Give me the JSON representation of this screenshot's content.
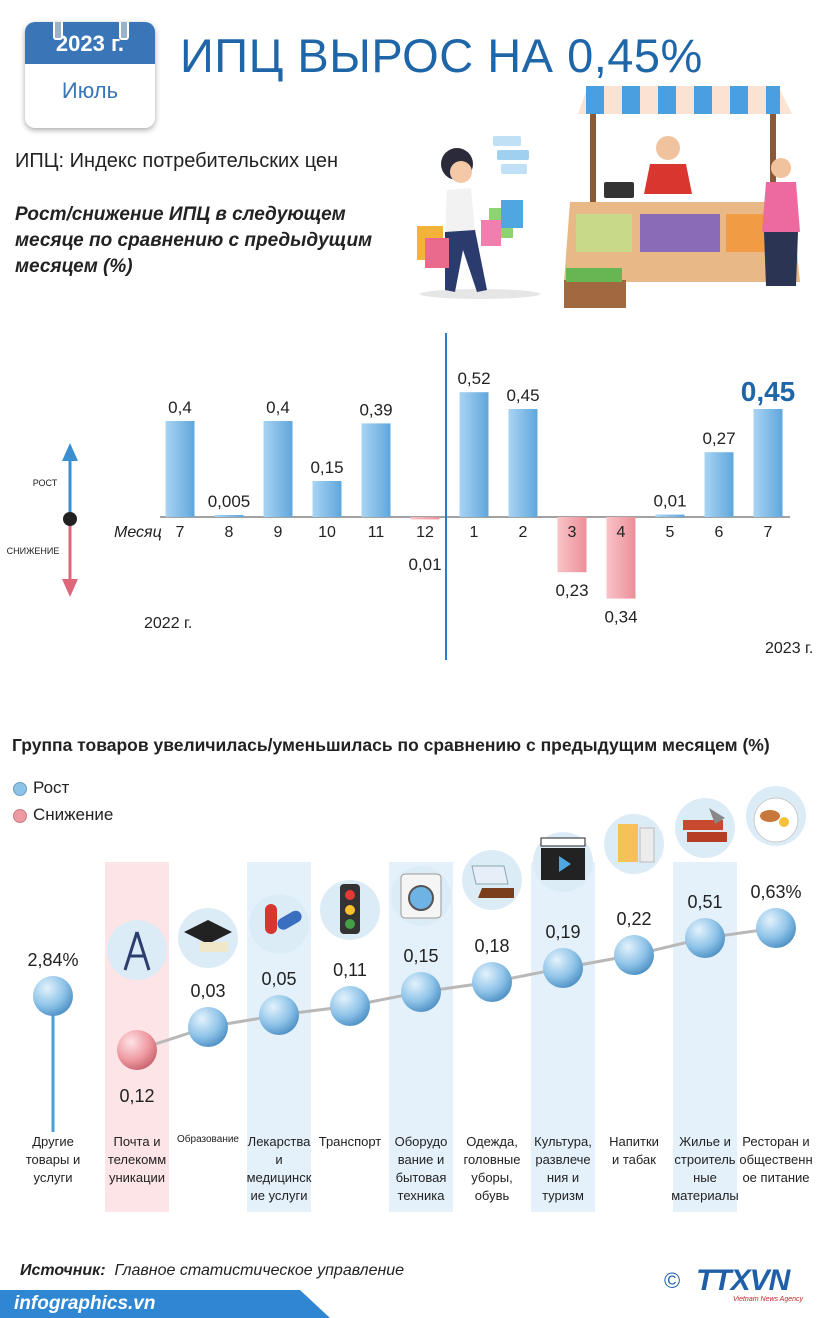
{
  "header": {
    "year_badge": "2023 г.",
    "month": "Июль",
    "title": "ИПЦ ВЫРОС НА 0,45%",
    "subtitle": "ИПЦ: Индекс потребительских цен",
    "question": "Рост/снижение ИПЦ в следующем месяце по сравнению с предыдущим месяцем (%)"
  },
  "arrow_labels": {
    "up": "РОСТ",
    "down": "СНИЖЕНИЕ"
  },
  "colors": {
    "accent": "#1f66a8",
    "increase": "#7fb8e6",
    "decrease": "#f4a6ad",
    "dot_increase": "#8ec3e8",
    "dot_decrease": "#ef9aa2",
    "footer": "#2f86d2"
  },
  "chart_data": [
    {
      "type": "bar",
      "x_label": "Месяц",
      "categories": [
        "7",
        "8",
        "9",
        "10",
        "11",
        "12",
        "1",
        "2",
        "3",
        "4",
        "5",
        "6",
        "7"
      ],
      "labels": [
        "0,4",
        "0,005",
        "0,4",
        "0,15",
        "0,39",
        "0,01",
        "0,52",
        "0,45",
        "0,23",
        "0,34",
        "0,01",
        "0,27",
        "0,45"
      ],
      "values": [
        0.4,
        0.005,
        0.4,
        0.15,
        0.39,
        -0.01,
        0.52,
        0.45,
        -0.23,
        -0.34,
        0.01,
        0.27,
        0.45
      ],
      "year_labels": [
        "2022 г.",
        "2023 г."
      ],
      "highlight": "last"
    },
    {
      "type": "scatter",
      "title": "Группа товаров увеличилась/уменьшилась по сравнению с предыдущим месяцем (%)",
      "legend": [
        "Рост",
        "Снижение"
      ],
      "categories": [
        "Другие товары и услуги",
        "Почта и телекоммуникации",
        "Образование",
        "Лекарства и медицинские услуги",
        "Транспорт",
        "Оборудование и бытовая техника",
        "Одежда, головные уборы, обувь",
        "Культура, развлечения и туризм",
        "Напитки и табак",
        "Жилье и строительные материалы",
        "Ресторан и общественное питание"
      ],
      "category_display": [
        "Другие\nтовары и\nуслуги",
        "Почта и\nтелекомм\nуникации",
        "Образование",
        "Лекарства\nи\nмедицинск\nие услуги",
        "Транспорт",
        "Оборудо\nвание и\nбытовая\nтехника",
        "Одежда,\nголовные\nуборы,\nобувь",
        "Культура,\nразвлече\nния и\nтуризм",
        "Напитки\nи табак",
        "Жилье и\nстроитель\nные\nматериалы",
        "Ресторан и\nобщественн\nое питание"
      ],
      "labels": [
        "2,84%",
        "0,12",
        "0,03",
        "0,05",
        "0,11",
        "0,15",
        "0,18",
        "0,19",
        "0,22",
        "0,51",
        "0,63%"
      ],
      "values": [
        2.84,
        -0.12,
        0.03,
        0.05,
        0.11,
        0.15,
        0.18,
        0.19,
        0.22,
        0.51,
        0.63
      ],
      "icons": [
        "",
        "antenna-tower-icon",
        "graduation-cap-icon",
        "pills-icon",
        "traffic-light-icon",
        "washing-machine-icon",
        "clothes-shoes-icon",
        "clapperboard-icon",
        "drinks-cigarettes-icon",
        "bricks-trowel-icon",
        "meal-plate-icon"
      ]
    }
  ],
  "footer": {
    "source_label": "Источник:",
    "source_text": "Главное статистическое управление",
    "site": "infographics.vn",
    "logo": "TTXVN",
    "logo_copyright": "©",
    "logo_sub": "Vietnam News Agency"
  }
}
